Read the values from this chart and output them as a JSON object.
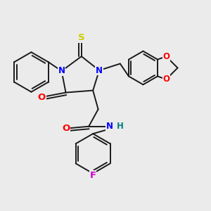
{
  "bg_color": "#ebebeb",
  "bond_color": "#1a1a1a",
  "bond_width": 1.4,
  "atom_colors": {
    "N": "#0000ff",
    "O": "#ff0000",
    "S": "#cccc00",
    "F": "#cc00cc",
    "H": "#008080",
    "C": "#1a1a1a"
  },
  "font_size": 8.5,
  "figsize": [
    3.0,
    3.0
  ],
  "dpi": 100
}
